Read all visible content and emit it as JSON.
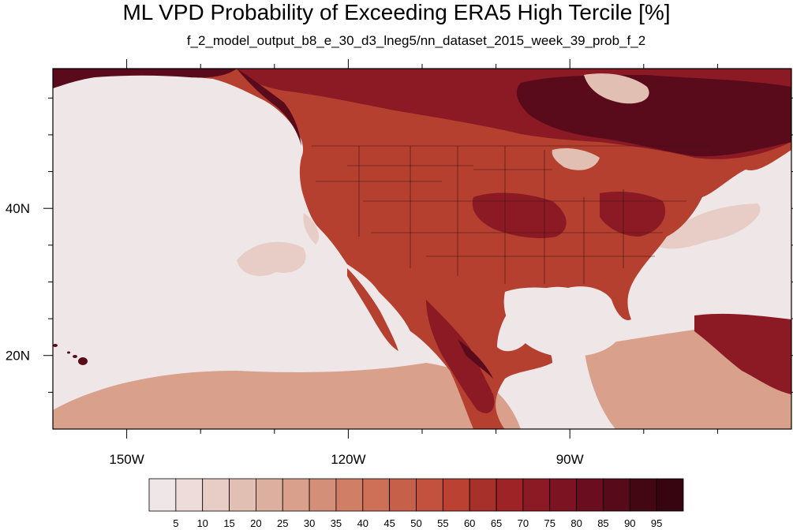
{
  "title": "ML VPD Probability of Exceeding ERA5 High Tercile [%]",
  "subtitle": "f_2_model_output_b8_e_30_d3_lneg5/nn_dataset_2015_week_39_prob_f_2",
  "axes": {
    "lat_labels": [
      {
        "value": 40,
        "text": "40N"
      },
      {
        "value": 20,
        "text": "20N"
      }
    ],
    "lon_labels": [
      {
        "value": -150,
        "text": "150W"
      },
      {
        "value": -120,
        "text": "120W"
      },
      {
        "value": -90,
        "text": "90W"
      }
    ],
    "lon_range": [
      -160,
      -60
    ],
    "lat_range": [
      10,
      59
    ]
  },
  "colorbar": {
    "levels": [
      "5",
      "10",
      "15",
      "20",
      "25",
      "30",
      "35",
      "40",
      "45",
      "50",
      "55",
      "60",
      "65",
      "70",
      "75",
      "80",
      "85",
      "90",
      "95"
    ],
    "colors": [
      "#efe7e7",
      "#eddcd9",
      "#e7cdc5",
      "#e2bfb3",
      "#dcaf9e",
      "#d9a08b",
      "#d38f78",
      "#d07f66",
      "#cd7057",
      "#c76049",
      "#c2513d",
      "#bb4233",
      "#a8302a",
      "#9d2327",
      "#8c1a25",
      "#7c1323",
      "#6a0e1f",
      "#560a1a",
      "#430714",
      "#360510"
    ]
  },
  "map": {
    "ocean_color": "#efe7e7",
    "land_color": "#b5402f",
    "high_color": "#8c1a25",
    "very_high_color": "#5a0b1b"
  }
}
